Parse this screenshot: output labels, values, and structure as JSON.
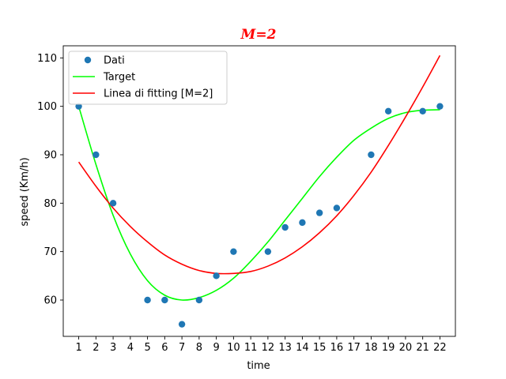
{
  "chart_data": {
    "type": "scatter",
    "title": "M=2",
    "title_color": "#ff0000",
    "xlabel": "time",
    "ylabel": "speed (Km/h)",
    "xlim": [
      0.1,
      22.9
    ],
    "ylim": [
      52.5,
      112.5
    ],
    "xticks": [
      1,
      2,
      3,
      4,
      5,
      6,
      7,
      8,
      9,
      10,
      11,
      12,
      13,
      14,
      15,
      16,
      17,
      18,
      19,
      20,
      21,
      22
    ],
    "yticks": [
      60,
      70,
      80,
      90,
      100,
      110
    ],
    "grid": false,
    "legend_position": "top-left",
    "series": [
      {
        "name": "Dati",
        "kind": "scatter",
        "color": "#1f77b4",
        "x": [
          1,
          2,
          3,
          5,
          6,
          7,
          8,
          9,
          10,
          12,
          13,
          14,
          15,
          16,
          18,
          19,
          21,
          22
        ],
        "y": [
          100,
          90,
          80,
          60,
          60,
          55,
          60,
          65,
          70,
          70,
          75,
          76,
          78,
          79,
          90,
          99,
          99,
          100
        ]
      },
      {
        "name": "Target",
        "kind": "line",
        "color": "#00ff00",
        "x": [
          1,
          2,
          3,
          4,
          5,
          6,
          7,
          8,
          9,
          10,
          11,
          12,
          13,
          14,
          15,
          16,
          17,
          18,
          19,
          20,
          21,
          22
        ],
        "y": [
          100,
          88,
          77.5,
          69.5,
          64,
          61,
          60,
          60.5,
          62,
          64.5,
          68,
          72,
          76.5,
          81,
          85.5,
          89.5,
          93,
          95.5,
          97.5,
          98.7,
          99.2,
          99.3
        ]
      },
      {
        "name": "Linea di fitting [M=2]",
        "kind": "line",
        "color": "#ff0000",
        "x": [
          1,
          2,
          3,
          4,
          5,
          6,
          7,
          8,
          9,
          10,
          11,
          12,
          13,
          14,
          15,
          16,
          17,
          18,
          19,
          20,
          21,
          22
        ],
        "y": [
          88.5,
          83.5,
          79,
          75.2,
          72,
          69.3,
          67.4,
          66.1,
          65.5,
          65.5,
          65.9,
          67,
          68.7,
          71,
          73.9,
          77.4,
          81.6,
          86.4,
          91.9,
          97.8,
          104,
          110.5
        ]
      }
    ]
  }
}
